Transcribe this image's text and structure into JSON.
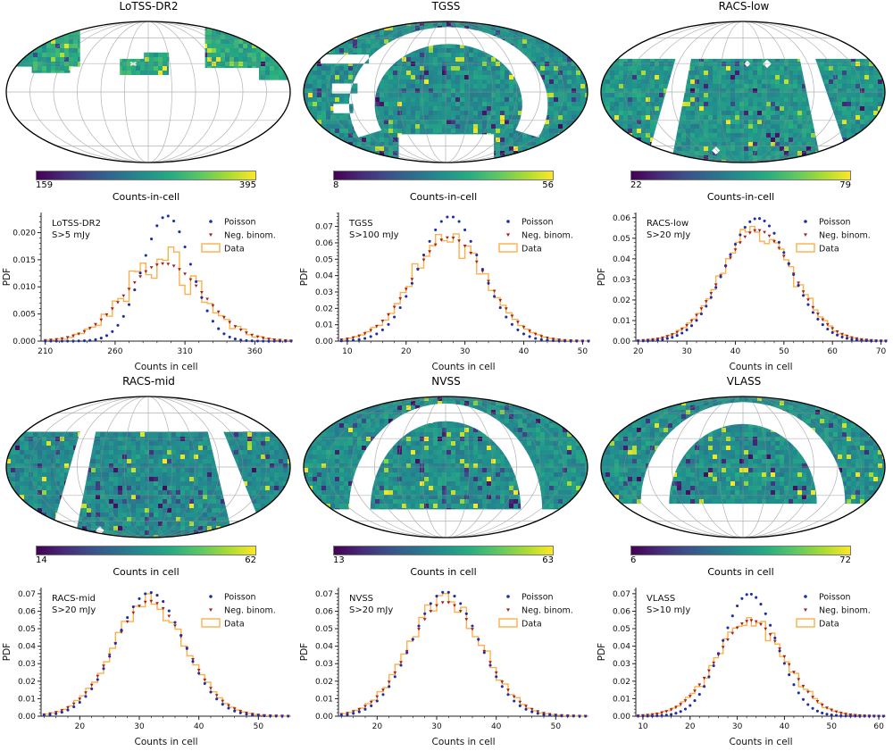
{
  "maps": [
    {
      "title": "LoTSS-DR2",
      "colorbar_min": "159",
      "colorbar_max": "395",
      "colorbar_label": "Counts-in-cell"
    },
    {
      "title": "TGSS",
      "colorbar_min": "8",
      "colorbar_max": "56",
      "colorbar_label": "Counts-in-cell"
    },
    {
      "title": "RACS-low",
      "colorbar_min": "22",
      "colorbar_max": "79",
      "colorbar_label": "Counts-in-cell"
    },
    {
      "title": "RACS-mid",
      "colorbar_min": "14",
      "colorbar_max": "62",
      "colorbar_label": "Counts in cell"
    },
    {
      "title": "NVSS",
      "colorbar_min": "13",
      "colorbar_max": "63",
      "colorbar_label": "Counts in cell"
    },
    {
      "title": "VLASS",
      "colorbar_min": "6",
      "colorbar_max": "72",
      "colorbar_label": "Counts in cell"
    }
  ],
  "colors": {
    "poisson": "#1c2fa8",
    "negbinom": "#a32121",
    "data_hist": "#fbb14b",
    "viridis_min": "#440154",
    "viridis_max": "#fde725",
    "graticule": "#8a8a8a",
    "outline": "#000000"
  },
  "chart_data": [
    {
      "type": "histogram",
      "survey": "LoTSS-DR2",
      "flux_cut": "S>5 mJy",
      "xlabel": "Counts in cell",
      "ylabel": "PDF",
      "legend": [
        "Poisson",
        "Neg. binom.",
        "Data"
      ],
      "legend_position": "upper right",
      "grid": false,
      "xlim": [
        207,
        386
      ],
      "ylim": [
        0,
        0.0237
      ],
      "xticks": [
        210,
        260,
        310,
        360
      ],
      "yticks": [
        0,
        0.005,
        0.01,
        0.015,
        0.02
      ],
      "y_decimals": 3,
      "x_minor": 10,
      "x_start": 210,
      "x_step": 4,
      "series": [
        {
          "name": "Poisson",
          "marker": "dot",
          "mean": 297,
          "sigma": 17.2,
          "peak": 0.0231
        },
        {
          "name": "Neg. binom.",
          "marker": "triangle",
          "mean": 295,
          "sigma": 28.0,
          "peak": 0.0143
        },
        {
          "name": "Data",
          "marker": "step",
          "mean": 295,
          "sigma": 28.0,
          "peak": 0.0143,
          "noise_frac": 0.17,
          "seed": 11
        }
      ]
    },
    {
      "type": "histogram",
      "survey": "TGSS",
      "flux_cut": "S>100 mJy",
      "xlabel": "Counts in cell",
      "ylabel": "PDF",
      "legend": [
        "Poisson",
        "Neg. binom.",
        "Data"
      ],
      "legend_position": "upper right",
      "grid": false,
      "xlim": [
        8.5,
        51
      ],
      "ylim": [
        0,
        0.0785
      ],
      "xticks": [
        10,
        20,
        30,
        40,
        50
      ],
      "yticks": [
        0,
        0.01,
        0.02,
        0.03,
        0.04,
        0.05,
        0.06,
        0.07
      ],
      "y_decimals": 2,
      "x_minor": 2,
      "x_start": 9,
      "x_step": 1,
      "series": [
        {
          "name": "Poisson",
          "marker": "dot",
          "mean": 27.5,
          "sigma": 5.24,
          "peak": 0.0761
        },
        {
          "name": "Neg. binom.",
          "marker": "triangle",
          "mean": 27.4,
          "sigma": 6.3,
          "peak": 0.0633
        },
        {
          "name": "Data",
          "marker": "step",
          "mean": 27.4,
          "sigma": 6.3,
          "peak": 0.0633,
          "noise_frac": 0.05,
          "seed": 22
        }
      ]
    },
    {
      "type": "histogram",
      "survey": "RACS-low",
      "flux_cut": "S>20 mJy",
      "xlabel": "Counts in cell",
      "ylabel": "PDF",
      "legend": [
        "Poisson",
        "Neg. binom.",
        "Data"
      ],
      "legend_position": "upper right",
      "grid": false,
      "xlim": [
        19.5,
        71
      ],
      "ylim": [
        0,
        0.0625
      ],
      "xticks": [
        20,
        30,
        40,
        50,
        60,
        70
      ],
      "yticks": [
        0,
        0.01,
        0.02,
        0.03,
        0.04,
        0.05,
        0.06
      ],
      "y_decimals": 2,
      "x_minor": 2,
      "x_start": 20,
      "x_step": 1,
      "series": [
        {
          "name": "Poisson",
          "marker": "dot",
          "mean": 44.6,
          "sigma": 6.68,
          "peak": 0.0597
        },
        {
          "name": "Neg. binom.",
          "marker": "triangle",
          "mean": 44.6,
          "sigma": 7.4,
          "peak": 0.0539
        },
        {
          "name": "Data",
          "marker": "step",
          "mean": 44.6,
          "sigma": 7.4,
          "peak": 0.0539,
          "noise_frac": 0.06,
          "seed": 33
        }
      ]
    },
    {
      "type": "histogram",
      "survey": "RACS-mid",
      "flux_cut": "S>20 mJy",
      "xlabel": "Counts in cell",
      "ylabel": "PDF",
      "legend": [
        "Poisson",
        "Neg. binom.",
        "Data"
      ],
      "legend_position": "upper right",
      "grid": false,
      "xlim": [
        13.5,
        55.5
      ],
      "ylim": [
        0,
        0.0735
      ],
      "xticks": [
        20,
        30,
        40,
        50
      ],
      "yticks": [
        0,
        0.01,
        0.02,
        0.03,
        0.04,
        0.05,
        0.06,
        0.07
      ],
      "y_decimals": 2,
      "x_minor": 2,
      "x_start": 14,
      "x_step": 1,
      "series": [
        {
          "name": "Poisson",
          "marker": "dot",
          "mean": 31.8,
          "sigma": 5.64,
          "peak": 0.0707
        },
        {
          "name": "Neg. binom.",
          "marker": "triangle",
          "mean": 31.8,
          "sigma": 6.06,
          "peak": 0.0658
        },
        {
          "name": "Data",
          "marker": "step",
          "mean": 31.8,
          "sigma": 6.06,
          "peak": 0.0658,
          "noise_frac": 0.045,
          "seed": 44
        }
      ]
    },
    {
      "type": "histogram",
      "survey": "NVSS",
      "flux_cut": "S>20 mJy",
      "xlabel": "Counts in cell",
      "ylabel": "PDF",
      "legend": [
        "Poisson",
        "Neg. binom.",
        "Data"
      ],
      "legend_position": "upper right",
      "grid": false,
      "xlim": [
        13.5,
        55.5
      ],
      "ylim": [
        0,
        0.0735
      ],
      "xticks": [
        20,
        30,
        40,
        50
      ],
      "yticks": [
        0,
        0.01,
        0.02,
        0.03,
        0.04,
        0.05,
        0.06,
        0.07
      ],
      "y_decimals": 2,
      "x_minor": 2,
      "x_start": 14,
      "x_step": 1,
      "series": [
        {
          "name": "Poisson",
          "marker": "dot",
          "mean": 31.5,
          "sigma": 5.61,
          "peak": 0.0711
        },
        {
          "name": "Neg. binom.",
          "marker": "triangle",
          "mean": 31.5,
          "sigma": 6.12,
          "peak": 0.0652
        },
        {
          "name": "Data",
          "marker": "step",
          "mean": 31.5,
          "sigma": 6.12,
          "peak": 0.0652,
          "noise_frac": 0.055,
          "seed": 55
        }
      ]
    },
    {
      "type": "histogram",
      "survey": "VLASS",
      "flux_cut": "S>10 mJy",
      "xlabel": "Counts in cell",
      "ylabel": "PDF",
      "legend": [
        "Poisson",
        "Neg. binom.",
        "Data"
      ],
      "legend_position": "upper right",
      "grid": false,
      "xlim": [
        8.5,
        61.5
      ],
      "ylim": [
        0,
        0.0735
      ],
      "xticks": [
        10,
        20,
        30,
        40,
        50,
        60
      ],
      "yticks": [
        0,
        0.01,
        0.02,
        0.03,
        0.04,
        0.05,
        0.06,
        0.07
      ],
      "y_decimals": 2,
      "x_minor": 2,
      "x_start": 9,
      "x_step": 1,
      "series": [
        {
          "name": "Poisson",
          "marker": "dot",
          "mean": 32.6,
          "sigma": 5.71,
          "peak": 0.0699
        },
        {
          "name": "Neg. binom.",
          "marker": "triangle",
          "mean": 32.9,
          "sigma": 7.3,
          "peak": 0.0547
        },
        {
          "name": "Data",
          "marker": "step",
          "mean": 32.9,
          "sigma": 7.3,
          "peak": 0.0547,
          "noise_frac": 0.06,
          "seed": 66
        }
      ]
    }
  ]
}
